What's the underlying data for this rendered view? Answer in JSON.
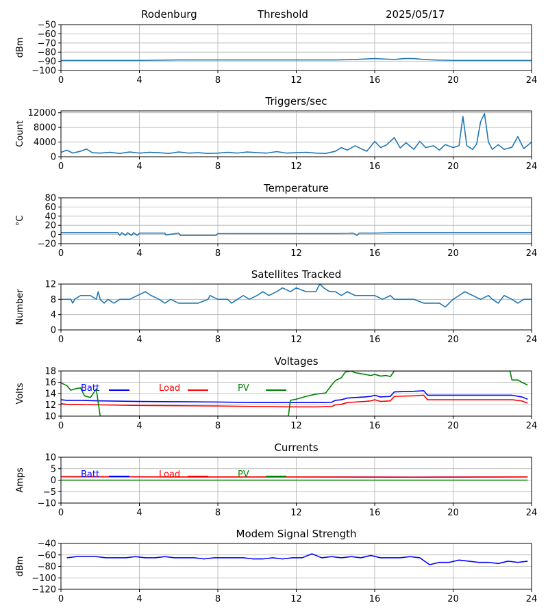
{
  "header": {
    "station": "Rodenburg",
    "mode": "Threshold",
    "date": "2025/05/17"
  },
  "colors": {
    "default_line": "#1f77b4",
    "batt": "#0000ff",
    "load": "#ff0000",
    "pv": "#008000",
    "grid": "#b0b0b0",
    "axis": "#000000"
  },
  "chart_data": [
    {
      "id": "noise",
      "type": "line",
      "title": "",
      "ylabel": "dBm",
      "xlim": [
        0,
        24
      ],
      "ylim": [
        -100,
        -50
      ],
      "xticks": [
        0,
        4,
        8,
        12,
        16,
        20,
        24
      ],
      "yticks": [
        -100,
        -90,
        -80,
        -70,
        -60,
        -50
      ],
      "grid": true,
      "series": [
        {
          "color": "#1f77b4",
          "x": [
            0,
            2,
            4,
            6,
            8,
            10,
            12,
            14,
            15,
            16,
            16.5,
            17,
            17.5,
            18,
            18.5,
            19,
            20,
            21,
            22,
            23,
            24
          ],
          "y": [
            -89,
            -89,
            -89,
            -88.5,
            -88.5,
            -88.5,
            -88.5,
            -88.5,
            -88,
            -87,
            -87.5,
            -88,
            -87,
            -87,
            -88,
            -88.5,
            -89,
            -89,
            -89,
            -89,
            -89
          ]
        }
      ]
    },
    {
      "id": "triggers",
      "type": "line",
      "title": "Triggers/sec",
      "ylabel": "Count",
      "xlim": [
        0,
        24
      ],
      "ylim": [
        0,
        12500
      ],
      "xticks": [
        0,
        4,
        8,
        12,
        16,
        20,
        24
      ],
      "yticks": [
        0,
        4000,
        8000,
        12000
      ],
      "grid": true,
      "series": [
        {
          "color": "#1f77b4",
          "x": [
            0,
            0.3,
            0.6,
            1,
            1.3,
            1.6,
            2,
            2.5,
            3,
            3.5,
            4,
            4.5,
            5,
            5.5,
            6,
            6.5,
            7,
            7.5,
            8,
            8.5,
            9,
            9.5,
            10,
            10.5,
            11,
            11.5,
            12,
            12.5,
            13,
            13.5,
            14,
            14.3,
            14.6,
            15,
            15.3,
            15.6,
            16,
            16.3,
            16.6,
            17,
            17.3,
            17.6,
            18,
            18.3,
            18.6,
            19,
            19.3,
            19.6,
            20,
            20.3,
            20.5,
            20.7,
            21,
            21.2,
            21.4,
            21.6,
            21.8,
            22,
            22.3,
            22.6,
            23,
            23.3,
            23.6,
            24
          ],
          "y": [
            1200,
            1800,
            1000,
            1500,
            2100,
            1100,
            1000,
            1200,
            900,
            1300,
            1000,
            1200,
            1100,
            900,
            1300,
            1000,
            1100,
            900,
            1000,
            1200,
            1000,
            1300,
            1100,
            1000,
            1400,
            1000,
            1100,
            1200,
            1000,
            900,
            1500,
            2500,
            1800,
            3000,
            2200,
            1500,
            4200,
            2500,
            3200,
            5200,
            2400,
            3800,
            2000,
            4200,
            2500,
            3000,
            1800,
            3300,
            2500,
            3000,
            11000,
            3000,
            2000,
            3500,
            9500,
            11800,
            4000,
            2000,
            3300,
            2000,
            2600,
            5500,
            2200,
            4000
          ]
        }
      ]
    },
    {
      "id": "temperature",
      "type": "line",
      "title": "Temperature",
      "ylabel": "°C",
      "xlim": [
        0,
        24
      ],
      "ylim": [
        -20,
        80
      ],
      "xticks": [
        0,
        4,
        8,
        12,
        16,
        20,
        24
      ],
      "yticks": [
        -20,
        0,
        20,
        40,
        60,
        80
      ],
      "grid": true,
      "series": [
        {
          "color": "#1f77b4",
          "x": [
            0,
            2.9,
            3,
            3.1,
            3.3,
            3.4,
            3.6,
            3.7,
            3.9,
            4,
            4.3,
            5.3,
            5.35,
            6,
            6.1,
            7.9,
            8,
            10,
            12,
            14,
            14.9,
            15.1,
            15.2,
            16,
            17,
            18,
            20,
            22,
            24
          ],
          "y": [
            4,
            4,
            -2,
            4,
            -2,
            4,
            -2,
            4,
            -2,
            3,
            3,
            3,
            -1,
            3,
            -2,
            -2,
            2,
            2,
            2,
            2,
            3,
            -2,
            3,
            3,
            4,
            4,
            4,
            4,
            4
          ]
        }
      ]
    },
    {
      "id": "satellites",
      "type": "line",
      "title": "Satellites Tracked",
      "ylabel": "Number",
      "xlim": [
        0,
        24
      ],
      "ylim": [
        0,
        12
      ],
      "xticks": [
        0,
        4,
        8,
        12,
        16,
        20,
        24
      ],
      "yticks": [
        0,
        4,
        8,
        12
      ],
      "grid": true,
      "series": [
        {
          "color": "#1f77b4",
          "x": [
            0,
            0.5,
            0.6,
            0.7,
            1,
            1.5,
            1.8,
            1.9,
            2,
            2.2,
            2.4,
            2.7,
            3,
            3.5,
            3.9,
            4.3,
            4.6,
            5,
            5.3,
            5.6,
            6,
            6.5,
            7,
            7.5,
            7.6,
            8,
            8.5,
            8.7,
            9,
            9.3,
            9.6,
            10,
            10.3,
            10.6,
            11,
            11.3,
            11.7,
            12,
            12.5,
            13,
            13.2,
            13.4,
            13.7,
            14,
            14.3,
            14.6,
            15,
            15.5,
            16,
            16.4,
            16.8,
            17,
            17.5,
            18,
            18.5,
            19,
            19.3,
            19.6,
            20,
            20.3,
            20.6,
            21,
            21.4,
            21.8,
            22,
            22.3,
            22.6,
            23,
            23.3,
            23.6,
            24
          ],
          "y": [
            8,
            8,
            7,
            8,
            9,
            9,
            8,
            10,
            8,
            7,
            8,
            7,
            8,
            8,
            9,
            10,
            9,
            8,
            7,
            8,
            7,
            7,
            7,
            8,
            9,
            8,
            8,
            7,
            8,
            9,
            8,
            9,
            10,
            9,
            10,
            11,
            10,
            11,
            10,
            10,
            12,
            11,
            10,
            10,
            9,
            10,
            9,
            9,
            9,
            8,
            9,
            8,
            8,
            8,
            7,
            7,
            7,
            6,
            8,
            9,
            10,
            9,
            8,
            9,
            8,
            7,
            9,
            8,
            7,
            8,
            8
          ]
        }
      ]
    },
    {
      "id": "voltages",
      "type": "line",
      "title": "Voltages",
      "ylabel": "Volts",
      "xlim": [
        0,
        24
      ],
      "ylim": [
        10,
        18
      ],
      "xticks": [
        0,
        4,
        8,
        12,
        16,
        20,
        24
      ],
      "yticks": [
        10,
        12,
        14,
        16,
        18
      ],
      "grid": true,
      "legend": "top-left",
      "series": [
        {
          "name": "Batt",
          "color": "#0000ff",
          "x": [
            0,
            0.3,
            1,
            2,
            4,
            6,
            8,
            10,
            11.8,
            12,
            13,
            13.8,
            14,
            14.3,
            14.6,
            15,
            15.5,
            15.8,
            16,
            16.3,
            16.8,
            17,
            18,
            18.5,
            18.7,
            20,
            22,
            23,
            23.5,
            23.8
          ],
          "y": [
            12.9,
            12.8,
            12.8,
            12.7,
            12.6,
            12.55,
            12.5,
            12.4,
            12.4,
            12.4,
            12.4,
            12.45,
            12.8,
            12.9,
            13.2,
            13.3,
            13.4,
            13.5,
            13.7,
            13.4,
            13.5,
            14.3,
            14.4,
            14.5,
            13.7,
            13.7,
            13.7,
            13.7,
            13.4,
            13.0
          ]
        },
        {
          "name": "Load",
          "color": "#ff0000",
          "x": [
            0,
            0.3,
            1,
            2,
            4,
            6,
            8,
            10,
            11.8,
            12,
            13,
            13.8,
            14,
            14.3,
            14.6,
            15,
            15.5,
            15.8,
            16,
            16.3,
            16.8,
            17,
            18,
            18.5,
            18.7,
            20,
            22,
            23,
            23.5,
            23.8
          ],
          "y": [
            12.2,
            12.1,
            12.05,
            12.0,
            11.9,
            11.85,
            11.8,
            11.7,
            11.65,
            11.65,
            11.65,
            11.7,
            12.0,
            12.1,
            12.4,
            12.5,
            12.6,
            12.7,
            12.9,
            12.6,
            12.7,
            13.5,
            13.6,
            13.7,
            12.9,
            12.9,
            12.9,
            12.9,
            12.7,
            12.3
          ]
        },
        {
          "name": "PV",
          "color": "#008000",
          "x": [
            0,
            0.3,
            0.5,
            0.8,
            1,
            1.2,
            1.5,
            1.8,
            2.0,
            2.5,
            11.6,
            11.7,
            12,
            12.5,
            13,
            13.5,
            13.8,
            14,
            14.3,
            14.5,
            14.8,
            15,
            15.5,
            15.8,
            16,
            16.3,
            16.6,
            16.8,
            17.0,
            22.9,
            23.0,
            23.3,
            23.5,
            23.8
          ],
          "y": [
            15.9,
            15.4,
            14.6,
            14.9,
            15.0,
            13.6,
            13.3,
            14.8,
            10.0,
            10.0,
            10.0,
            12.8,
            13.0,
            13.5,
            13.9,
            14.1,
            15.5,
            16.3,
            16.8,
            17.8,
            18.0,
            17.7,
            17.4,
            17.2,
            17.4,
            17.1,
            17.2,
            17.0,
            18.0,
            18.0,
            16.4,
            16.4,
            16.0,
            15.5
          ]
        }
      ]
    },
    {
      "id": "currents",
      "type": "line",
      "title": "Currents",
      "ylabel": "Amps",
      "xlim": [
        0,
        24
      ],
      "ylim": [
        -10,
        10
      ],
      "xticks": [
        0,
        4,
        8,
        12,
        16,
        20,
        24
      ],
      "yticks": [
        -10,
        -5,
        0,
        5,
        10
      ],
      "grid": true,
      "legend": "top-left",
      "series": [
        {
          "name": "Batt",
          "color": "#0000ff",
          "x": [
            0,
            6,
            12,
            18,
            23.8
          ],
          "y": [
            1.5,
            1.4,
            1.4,
            1.3,
            1.4
          ]
        },
        {
          "name": "Load",
          "color": "#ff0000",
          "x": [
            0,
            6,
            12,
            18,
            23.8
          ],
          "y": [
            1.5,
            1.4,
            1.4,
            1.3,
            1.4
          ]
        },
        {
          "name": "PV",
          "color": "#008000",
          "x": [
            0,
            6,
            12,
            18,
            23.8
          ],
          "y": [
            0,
            0,
            0,
            0,
            0
          ]
        }
      ]
    },
    {
      "id": "modem",
      "type": "line",
      "title": "Modem Signal Strength",
      "ylabel": "dBm",
      "xlim": [
        0,
        24
      ],
      "ylim": [
        -120,
        -40
      ],
      "xticks": [
        0,
        4,
        8,
        12,
        16,
        20,
        24
      ],
      "yticks": [
        -120,
        -100,
        -80,
        -60,
        -40
      ],
      "grid": true,
      "series": [
        {
          "color": "#0000ff",
          "x": [
            0.3,
            0.8,
            1.8,
            2.3,
            3.3,
            3.8,
            4.3,
            4.8,
            5.3,
            5.8,
            6.8,
            7.3,
            7.8,
            8.8,
            9.3,
            9.8,
            10.3,
            10.8,
            11.3,
            11.8,
            12.3,
            12.8,
            13.3,
            13.8,
            14.3,
            14.8,
            15.3,
            15.8,
            16.3,
            16.8,
            17.3,
            17.8,
            18.3,
            18.8,
            19.3,
            19.8,
            20.3,
            20.8,
            21.3,
            21.8,
            22.3,
            22.8,
            23.3,
            23.8
          ],
          "y": [
            -65,
            -63,
            -63,
            -65,
            -65,
            -63,
            -65,
            -65,
            -63,
            -65,
            -65,
            -67,
            -65,
            -65,
            -65,
            -67,
            -67,
            -65,
            -67,
            -65,
            -65,
            -58,
            -65,
            -63,
            -65,
            -63,
            -65,
            -61,
            -65,
            -65,
            -65,
            -63,
            -65,
            -77,
            -73,
            -73,
            -69,
            -71,
            -73,
            -73,
            -75,
            -71,
            -73,
            -71
          ]
        }
      ]
    }
  ]
}
